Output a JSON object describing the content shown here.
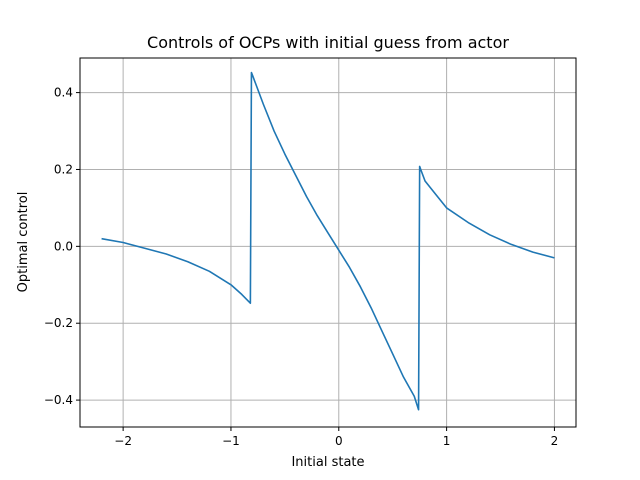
{
  "chart_data": {
    "type": "line",
    "title": "Controls of OCPs with initial guess from actor",
    "xlabel": "Initial state",
    "ylabel": "Optimal control",
    "xlim": [
      -2.4,
      2.2
    ],
    "ylim": [
      -0.47,
      0.49
    ],
    "grid": true,
    "x_ticks": [
      {
        "value": -2,
        "label": "−2"
      },
      {
        "value": -1,
        "label": "−1"
      },
      {
        "value": 0,
        "label": "0"
      },
      {
        "value": 1,
        "label": "1"
      },
      {
        "value": 2,
        "label": "2"
      }
    ],
    "y_ticks": [
      {
        "value": -0.4,
        "label": "−0.4"
      },
      {
        "value": -0.2,
        "label": "−0.2"
      },
      {
        "value": 0.0,
        "label": "0.0"
      },
      {
        "value": 0.2,
        "label": "0.2"
      },
      {
        "value": 0.4,
        "label": "0.4"
      }
    ],
    "series": [
      {
        "color": "#1f77b4",
        "x": [
          -2.2,
          -2.0,
          -1.8,
          -1.6,
          -1.4,
          -1.2,
          -1.0,
          -0.9,
          -0.82,
          -0.81,
          -0.8,
          -0.7,
          -0.6,
          -0.5,
          -0.4,
          -0.3,
          -0.2,
          -0.1,
          0.0,
          0.1,
          0.2,
          0.3,
          0.4,
          0.5,
          0.6,
          0.7,
          0.74,
          0.75,
          0.76,
          0.8,
          0.9,
          1.0,
          1.2,
          1.4,
          1.6,
          1.8,
          2.0
        ],
        "y": [
          0.02,
          0.01,
          -0.005,
          -0.02,
          -0.04,
          -0.065,
          -0.1,
          -0.125,
          -0.148,
          0.452,
          0.445,
          0.37,
          0.3,
          0.24,
          0.185,
          0.13,
          0.08,
          0.035,
          -0.01,
          -0.055,
          -0.105,
          -0.16,
          -0.22,
          -0.28,
          -0.34,
          -0.39,
          -0.425,
          0.208,
          0.2,
          0.17,
          0.135,
          0.1,
          0.062,
          0.03,
          0.005,
          -0.015,
          -0.03
        ]
      }
    ]
  }
}
